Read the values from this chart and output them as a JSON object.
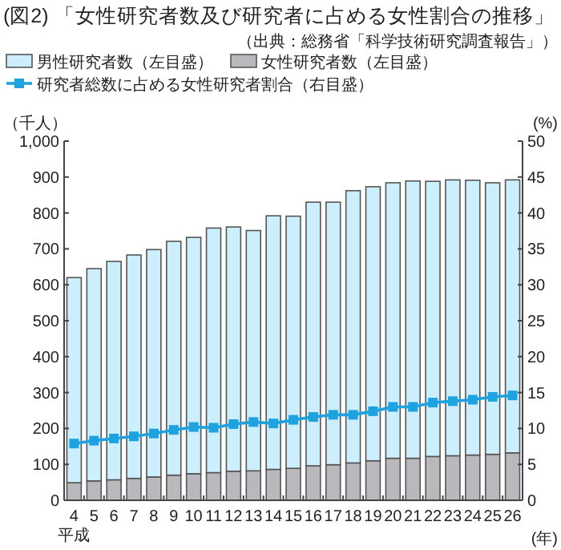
{
  "chart_data": {
    "type": "bar",
    "title": "(図2) 「女性研究者数及び研究者に占める女性割合の推移」",
    "subtitle": "（出典：総務省「科学技術研究調査報告」）",
    "ylabel": "（千人）",
    "y2label": "(%)",
    "xlabel": "(年)",
    "categories": [
      "平成4",
      "5",
      "6",
      "7",
      "8",
      "9",
      "10",
      "11",
      "12",
      "13",
      "14",
      "15",
      "16",
      "17",
      "18",
      "19",
      "20",
      "21",
      "22",
      "23",
      "24",
      "25",
      "26"
    ],
    "stacked": true,
    "legend": "top",
    "series": [
      {
        "name": "女性研究者数（左目盛）",
        "color": "#b9b9bd",
        "values": [
          49,
          54,
          57,
          61,
          65,
          70,
          74,
          77,
          81,
          82,
          86,
          89,
          96,
          99,
          104,
          110,
          117,
          117,
          122,
          124,
          126,
          128,
          132
        ]
      },
      {
        "name": "男性研究者数（左目盛）",
        "color": "#cdeefc",
        "values": [
          571,
          591,
          608,
          622,
          633,
          651,
          658,
          681,
          680,
          669,
          706,
          702,
          734,
          731,
          758,
          763,
          767,
          772,
          766,
          768,
          765,
          756,
          760
        ]
      },
      {
        "name": "研究者総数に占める女性研究者割合（右目盛）",
        "type": "line",
        "axis": "y2",
        "marker": "square",
        "color": "#1ea3e0",
        "values": [
          7.9,
          8.3,
          8.6,
          8.9,
          9.3,
          9.8,
          10.2,
          10.1,
          10.6,
          10.9,
          10.7,
          11.2,
          11.6,
          11.9,
          11.9,
          12.4,
          13.0,
          13.0,
          13.6,
          13.8,
          14.0,
          14.4,
          14.6
        ]
      }
    ],
    "ylim": [
      0,
      1000
    ],
    "yticks": [
      0,
      100,
      200,
      300,
      400,
      500,
      600,
      700,
      800,
      900,
      {
        "value": 1000,
        "label": "1,000"
      }
    ],
    "y2lim": [
      0,
      50
    ],
    "y2ticks": [
      0,
      5,
      10,
      15,
      20,
      25,
      30,
      35,
      40,
      45,
      50
    ],
    "grid": false
  }
}
